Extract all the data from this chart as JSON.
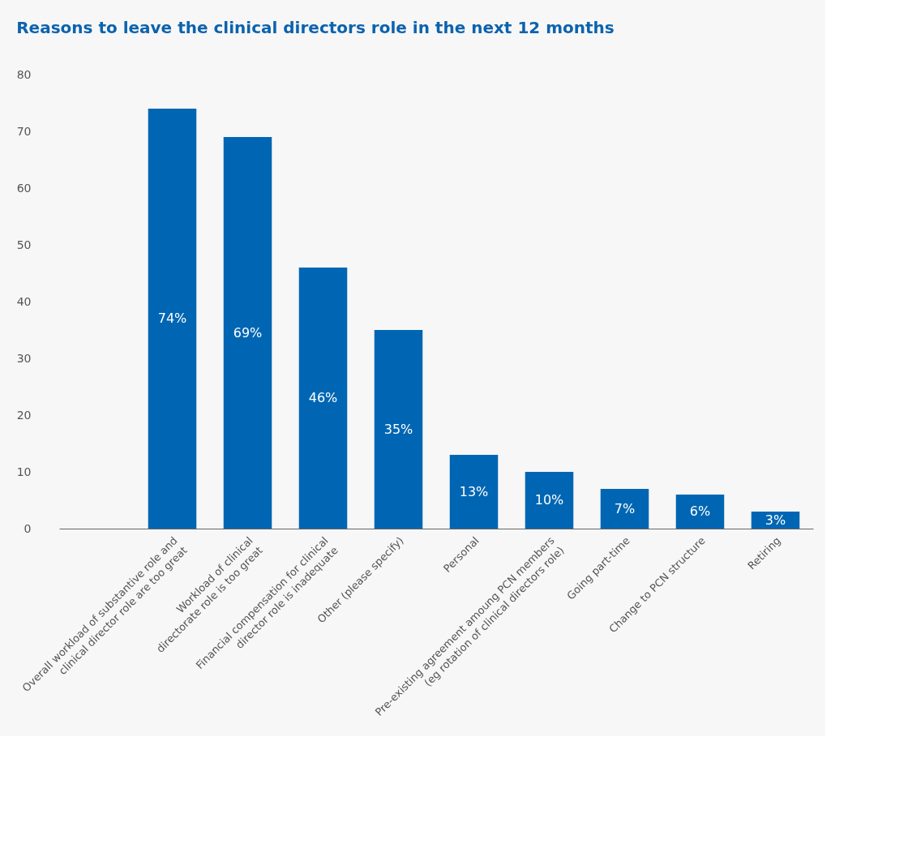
{
  "chart_data": {
    "type": "bar",
    "title": "Reasons to leave the clinical directors role in the next 12 months",
    "categories": [
      null,
      "Overall workload of substantive role and clinical director role are too great",
      "Workload of clinical directorate role is too great",
      "Financial compensation for clinical director role is inadequate",
      "Other (please specify)",
      "Personal",
      "Pre-existing agreement amoung PCN members (eg rotation of clinical directors role)",
      "Going part-time",
      "Change to PCN structure",
      "Retiring"
    ],
    "values": [
      null,
      74,
      69,
      46,
      35,
      13,
      10,
      7,
      6,
      3
    ],
    "value_labels": [
      null,
      "74%",
      "69%",
      "46%",
      "35%",
      "13%",
      "10%",
      "7%",
      "6%",
      "3%"
    ],
    "color": "#0066b3",
    "ylim": [
      0,
      80
    ],
    "yticks": [
      0,
      10,
      20,
      30,
      40,
      50,
      60,
      70,
      80
    ],
    "grid": false
  }
}
